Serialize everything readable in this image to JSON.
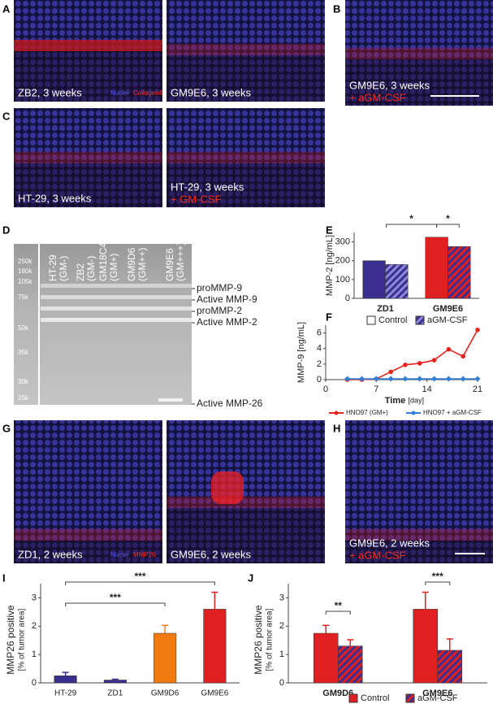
{
  "letters": [
    "A",
    "B",
    "C",
    "D",
    "E",
    "F",
    "G",
    "H",
    "I",
    "J"
  ],
  "images": {
    "a_left": {
      "label": "ZB2, 3 weeks",
      "stains": [
        "Nuclei",
        "Collagen4"
      ]
    },
    "a_right": {
      "label": "GM9E6, 3 weeks"
    },
    "b": {
      "label": "GM9E6, 3 weeks",
      "treatment": "+ aGM-CSF"
    },
    "c_left": {
      "label": "HT-29, 3 weeks"
    },
    "c_right": {
      "label": "HT-29, 3 weeks",
      "treatment": "+ GM-CSF"
    },
    "g_left": {
      "label": "ZD1, 2 weeks",
      "stains": [
        "Nuclei",
        "MMP26"
      ]
    },
    "g_right": {
      "label": "GM9E6, 2 weeks"
    },
    "h": {
      "label": "GM9E6, 2 weeks",
      "treatment": "+ aGM-CSF"
    }
  },
  "blot": {
    "lanes": [
      [
        "HT-29",
        "(GM-)"
      ],
      [
        "ZB2",
        "(GM-)"
      ],
      [
        "GM18C4",
        "(GM+)"
      ],
      [
        "GM9D6",
        "(GM++)"
      ],
      [
        "GM9E6",
        "(GM+++)"
      ]
    ],
    "markers": [
      "250k",
      "160k",
      "105k",
      "75k",
      "50k",
      "35k",
      "30k",
      "25k"
    ],
    "bands": [
      "proMMP-9",
      "Active MMP-9",
      "proMMP-2",
      "Active MMP-2",
      "Active MMP-26"
    ]
  },
  "chart_data": [
    {
      "type": "bar",
      "ylabel": "MMP-2 [ng/mL]",
      "categories": [
        "ZD1",
        "GM9E6"
      ],
      "colors": [
        "#3b2e8f",
        "#e02020"
      ],
      "series": [
        {
          "name": "Control",
          "hatched": false,
          "values": [
            200,
            325
          ]
        },
        {
          "name": "aGM-CSF",
          "hatched": true,
          "values": [
            180,
            275
          ]
        }
      ],
      "significance": [
        "*",
        "*"
      ],
      "ylim": [
        0,
        350
      ],
      "yticks": [
        0,
        100,
        200,
        300
      ]
    },
    {
      "type": "line",
      "ylabel": "MMP-9 [ng/mL]",
      "xlabel": "Time",
      "xlabel_unit": "[day]",
      "x": [
        3,
        5,
        7,
        9,
        11,
        13,
        15,
        17,
        19,
        21
      ],
      "series": [
        {
          "name": "HNO97 (GM+)",
          "color": "#e8231f",
          "values": [
            0,
            0,
            0.1,
            1.0,
            1.9,
            2.1,
            2.5,
            3.9,
            3.0,
            6.4
          ]
        },
        {
          "name": "HNO97 + aGM-CSF",
          "color": "#2f7ed8",
          "values": [
            0.1,
            0.1,
            0.1,
            0.1,
            0.1,
            0.1,
            0.1,
            0.1,
            0.1,
            0.1
          ]
        }
      ],
      "xlim": [
        0,
        21
      ],
      "xticks": [
        0,
        7,
        14,
        21
      ],
      "ylim": [
        0,
        7
      ],
      "yticks": [
        0,
        2,
        4,
        6
      ]
    },
    {
      "type": "bar",
      "ylabel": [
        "MMP26 positive",
        "[% of tumor area]"
      ],
      "categories": [
        "HT-29",
        "ZD1",
        "GM9D6",
        "GM9E6"
      ],
      "colors": [
        "#3b2e8f",
        "#3b2e8f",
        "#f07a10",
        "#e02020"
      ],
      "values": [
        0.25,
        0.1,
        1.75,
        2.6
      ],
      "errors": [
        0.12,
        0.03,
        0.28,
        0.6
      ],
      "significance": [
        "***",
        "***"
      ],
      "ylim": [
        0,
        3.5
      ],
      "yticks": [
        0,
        1,
        2,
        3
      ]
    },
    {
      "type": "bar",
      "ylabel": [
        "MMP26 positive",
        "[% of tumor area]"
      ],
      "categories": [
        "GM9D6",
        "GM9E6"
      ],
      "colors": [
        "#f07a10",
        "#e02020"
      ],
      "series": [
        {
          "name": "Control",
          "color": "#e02020",
          "hatched": false,
          "values": [
            1.75,
            2.6
          ],
          "errors": [
            0.28,
            0.6
          ]
        },
        {
          "name": "aGM-CSF",
          "color": "#e02020",
          "hatched": true,
          "values": [
            1.3,
            1.15
          ],
          "errors": [
            0.22,
            0.4
          ]
        }
      ],
      "significance": [
        "**",
        "***"
      ],
      "ylim": [
        0,
        3.5
      ],
      "yticks": [
        0,
        1,
        2,
        3
      ]
    }
  ]
}
